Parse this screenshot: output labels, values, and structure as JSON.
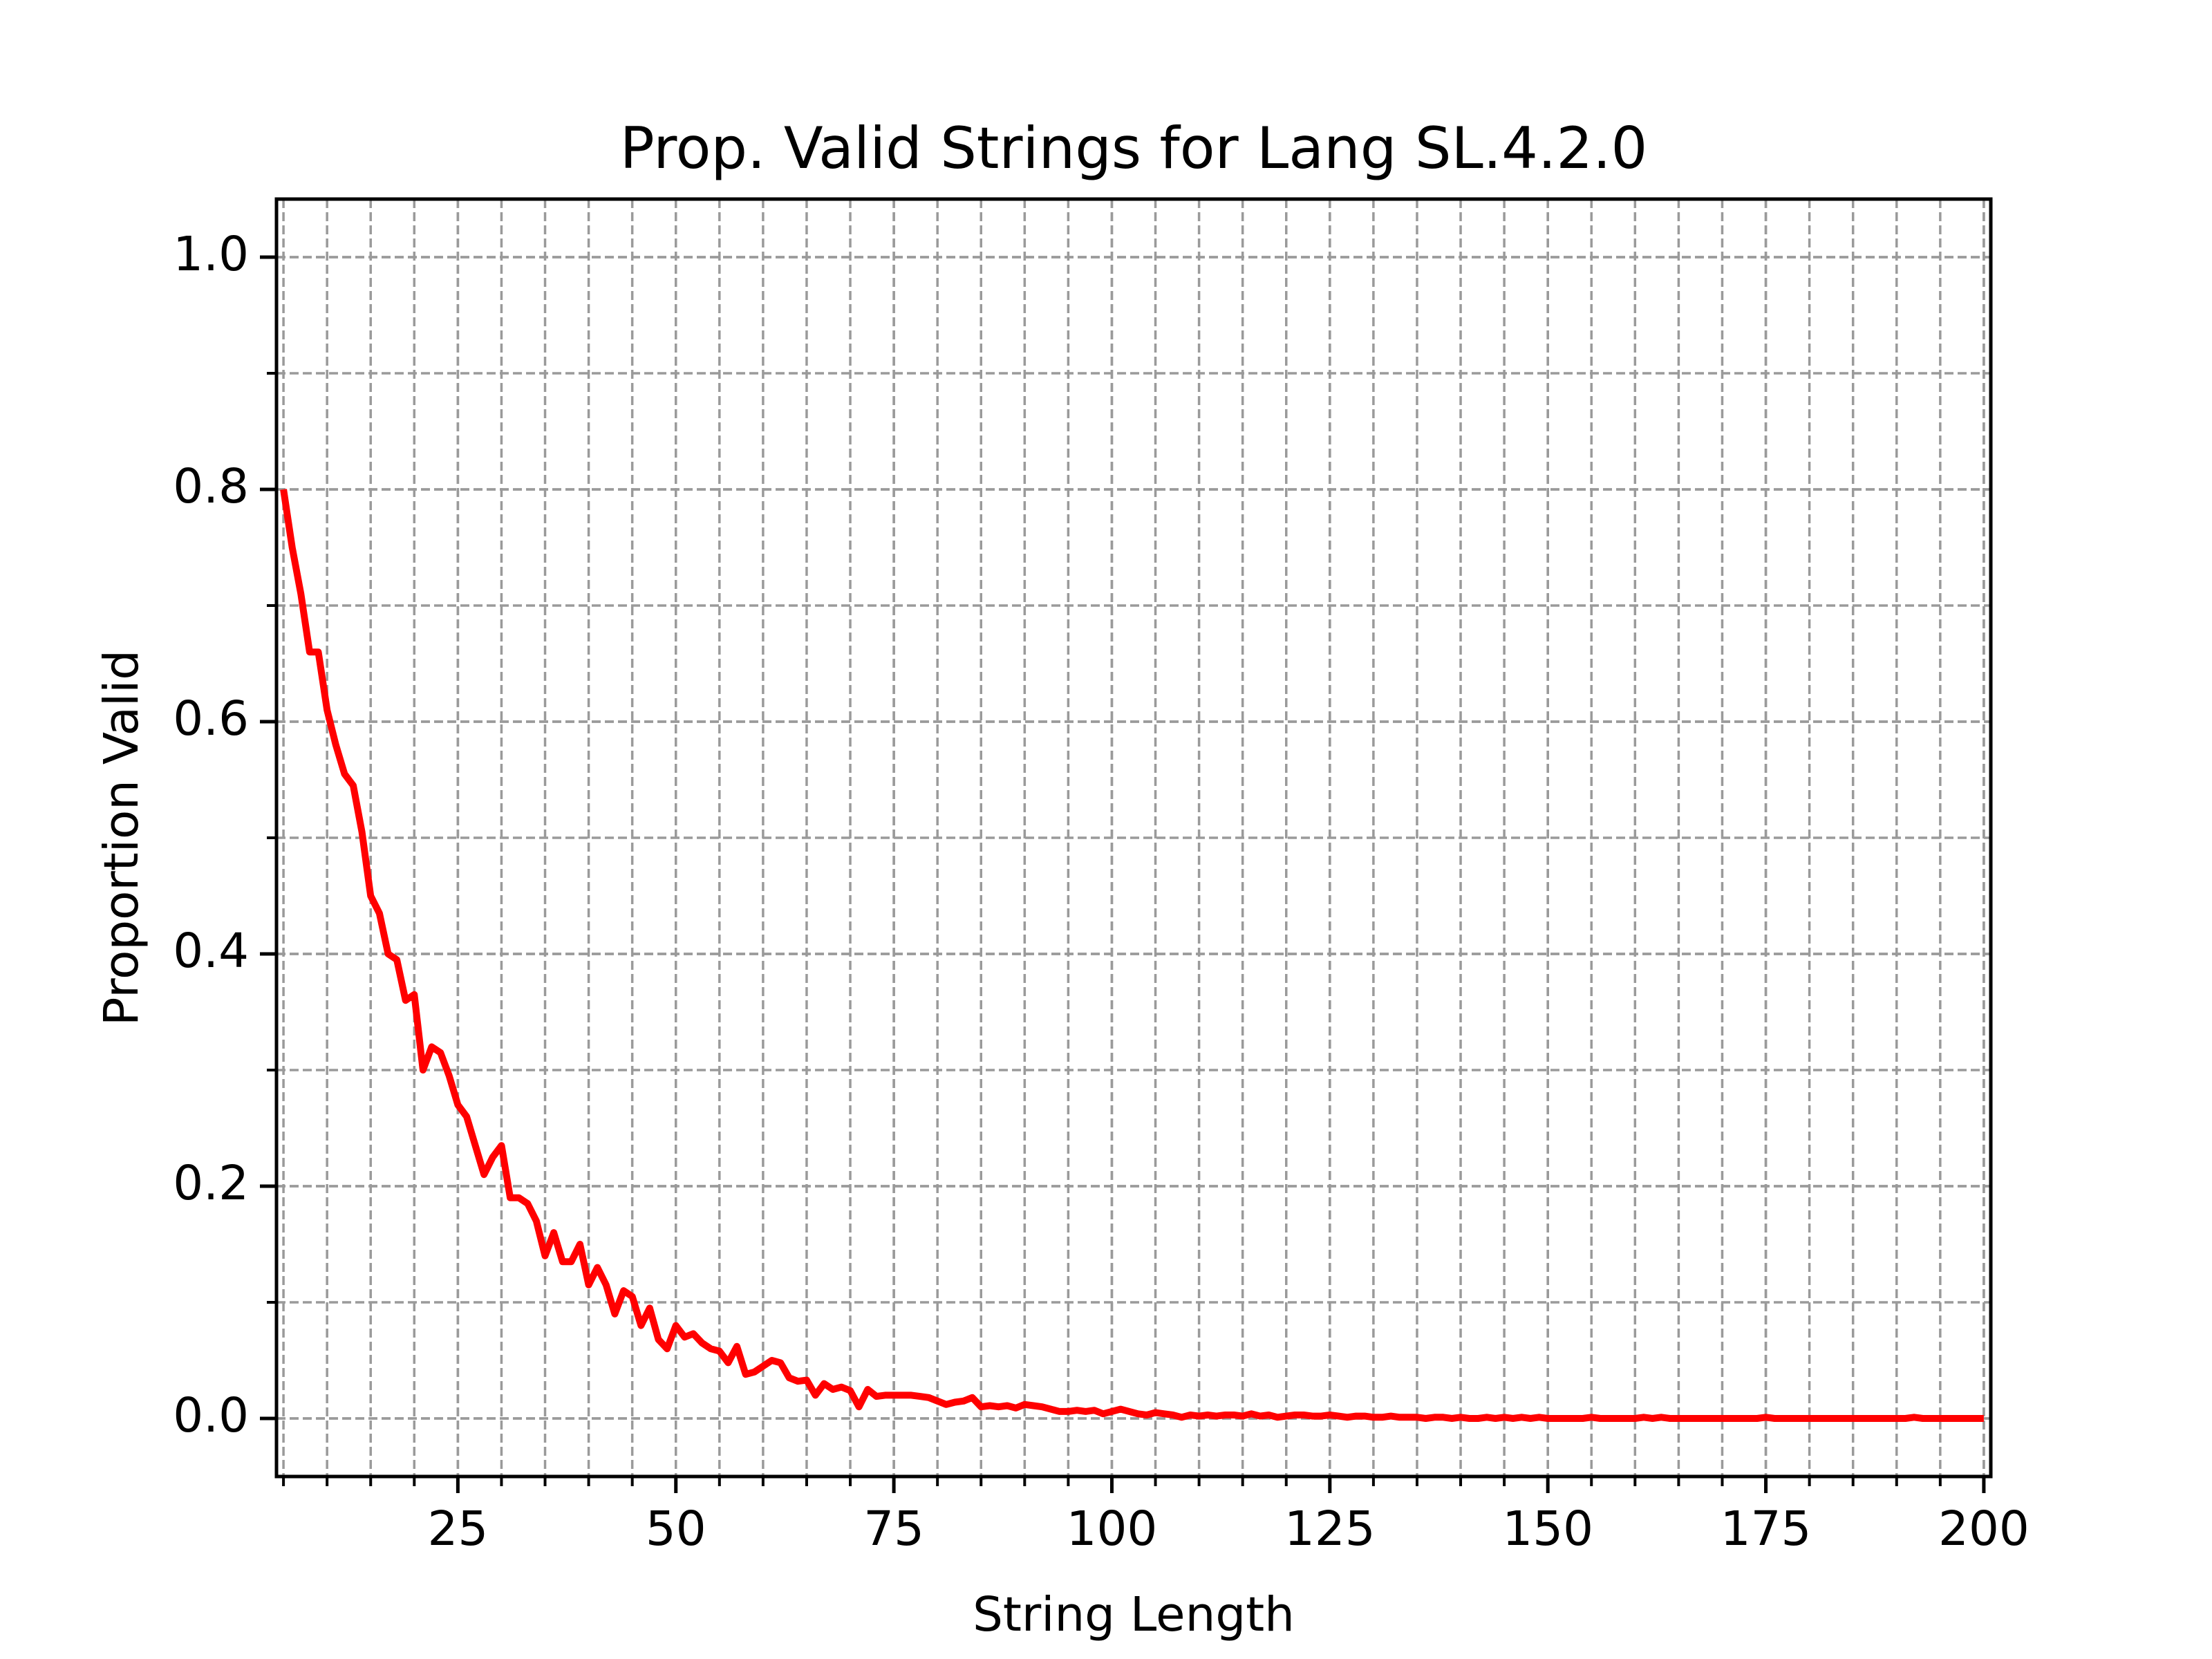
{
  "chart_data": {
    "type": "line",
    "title": "Prop. Valid Strings for Lang SL.4.2.0",
    "x_label": "String Length",
    "y_label": "Proportion Valid",
    "x": [
      5,
      6,
      7,
      8,
      9,
      10,
      11,
      12,
      13,
      14,
      15,
      16,
      17,
      18,
      19,
      20,
      21,
      22,
      23,
      24,
      25,
      26,
      27,
      28,
      29,
      30,
      31,
      32,
      33,
      34,
      35,
      36,
      37,
      38,
      39,
      40,
      41,
      42,
      43,
      44,
      45,
      46,
      47,
      48,
      49,
      50,
      51,
      52,
      53,
      54,
      55,
      56,
      57,
      58,
      59,
      60,
      61,
      62,
      63,
      64,
      65,
      66,
      67,
      68,
      69,
      70,
      71,
      72,
      73,
      74,
      75,
      76,
      77,
      78,
      79,
      80,
      81,
      82,
      83,
      84,
      85,
      86,
      87,
      88,
      89,
      90,
      91,
      92,
      93,
      94,
      95,
      96,
      97,
      98,
      99,
      100,
      101,
      102,
      103,
      104,
      105,
      106,
      107,
      108,
      109,
      110,
      111,
      112,
      113,
      114,
      115,
      116,
      117,
      118,
      119,
      120,
      121,
      122,
      123,
      124,
      125,
      126,
      127,
      128,
      129,
      130,
      131,
      132,
      133,
      134,
      135,
      136,
      137,
      138,
      139,
      140,
      141,
      142,
      143,
      144,
      145,
      146,
      147,
      148,
      149,
      150,
      151,
      152,
      153,
      154,
      155,
      156,
      157,
      158,
      159,
      160,
      161,
      162,
      163,
      164,
      165,
      166,
      167,
      168,
      169,
      170,
      171,
      172,
      173,
      174,
      175,
      176,
      177,
      178,
      179,
      180,
      181,
      182,
      183,
      184,
      185,
      186,
      187,
      188,
      189,
      190,
      191,
      192,
      193,
      194,
      195,
      196,
      197,
      198,
      199,
      200
    ],
    "series": [
      {
        "color": "#ff0000",
        "values": [
          0.8,
          0.75,
          0.71,
          0.66,
          0.66,
          0.61,
          0.58,
          0.555,
          0.545,
          0.505,
          0.45,
          0.435,
          0.4,
          0.395,
          0.36,
          0.365,
          0.3,
          0.32,
          0.315,
          0.295,
          0.27,
          0.26,
          0.235,
          0.21,
          0.225,
          0.235,
          0.19,
          0.19,
          0.185,
          0.17,
          0.14,
          0.16,
          0.135,
          0.135,
          0.15,
          0.115,
          0.13,
          0.115,
          0.09,
          0.11,
          0.105,
          0.08,
          0.095,
          0.068,
          0.06,
          0.08,
          0.07,
          0.073,
          0.065,
          0.06,
          0.058,
          0.048,
          0.062,
          0.038,
          0.04,
          0.045,
          0.05,
          0.048,
          0.035,
          0.032,
          0.033,
          0.02,
          0.03,
          0.025,
          0.027,
          0.024,
          0.01,
          0.025,
          0.019,
          0.02,
          0.02,
          0.02,
          0.02,
          0.019,
          0.018,
          0.015,
          0.012,
          0.014,
          0.015,
          0.018,
          0.01,
          0.011,
          0.01,
          0.011,
          0.009,
          0.012,
          0.011,
          0.01,
          0.008,
          0.006,
          0.006,
          0.007,
          0.006,
          0.007,
          0.004,
          0.006,
          0.008,
          0.006,
          0.004,
          0.003,
          0.005,
          0.004,
          0.003,
          0.001,
          0.003,
          0.002,
          0.003,
          0.002,
          0.003,
          0.003,
          0.002,
          0.004,
          0.002,
          0.003,
          0.001,
          0.002,
          0.003,
          0.003,
          0.002,
          0.002,
          0.003,
          0.002,
          0.001,
          0.002,
          0.002,
          0.001,
          0.001,
          0.002,
          0.001,
          0.001,
          0.001,
          0,
          0.001,
          0.001,
          0,
          0.001,
          0,
          0,
          0.001,
          0,
          0.001,
          0,
          0.001,
          0,
          0.001,
          0,
          0,
          0,
          0,
          0,
          0.001,
          0,
          0,
          0,
          0,
          0,
          0.001,
          0,
          0.001,
          0,
          0,
          0,
          0,
          0,
          0,
          0,
          0,
          0,
          0,
          0,
          0.001,
          0,
          0,
          0,
          0,
          0,
          0,
          0,
          0,
          0,
          0,
          0,
          0,
          0,
          0,
          0,
          0,
          0.001,
          0,
          0,
          0,
          0,
          0,
          0,
          0,
          0
        ]
      }
    ],
    "xlim": [
      4.2,
      200.8
    ],
    "ylim": [
      -0.05,
      1.05
    ],
    "xticks": [
      25,
      50,
      75,
      100,
      125,
      150,
      175,
      200
    ],
    "yticks": [
      {
        "value": 0,
        "label": "0.0"
      },
      0.2,
      0.4,
      0.6,
      0.8,
      {
        "value": 1,
        "label": "1.0"
      }
    ],
    "grid": true,
    "minor_grid": {
      "x": 5,
      "y": 0.1
    }
  }
}
